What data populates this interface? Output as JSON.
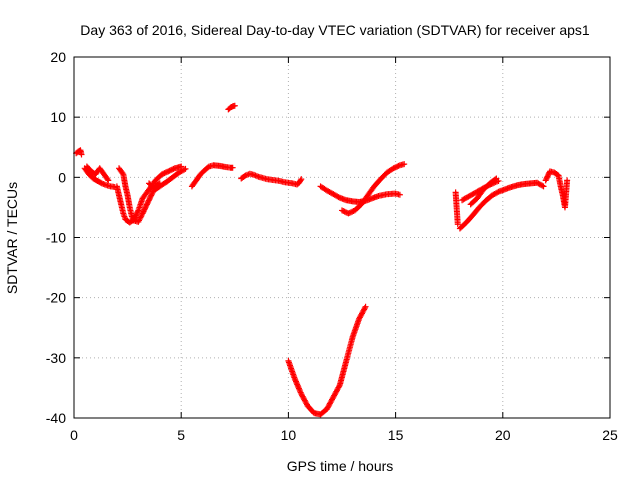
{
  "chart_data": {
    "type": "scatter",
    "title": "Day 363 of 2016, Sidereal Day-to-day VTEC variation (SDTVAR) for receiver aps1",
    "xlabel": "GPS time / hours",
    "ylabel": "SDTVAR / TECUs",
    "xlim": [
      0,
      25
    ],
    "ylim": [
      -40,
      20
    ],
    "xticks": [
      0,
      5,
      10,
      15,
      20,
      25
    ],
    "yticks": [
      -40,
      -30,
      -20,
      -10,
      0,
      10,
      20
    ],
    "grid": true,
    "marker": "+",
    "series": [
      {
        "name": "sdtvar",
        "color": "#ff0000",
        "segments": [
          [
            [
              0.1,
              4.0
            ],
            [
              0.2,
              4.3
            ],
            [
              0.3,
              4.5
            ],
            [
              0.35,
              3.8
            ]
          ],
          [
            [
              0.5,
              1.5
            ],
            [
              0.7,
              0.5
            ],
            [
              0.9,
              -0.2
            ],
            [
              1.1,
              -0.6
            ],
            [
              1.3,
              -1.0
            ],
            [
              1.5,
              -1.3
            ],
            [
              1.7,
              -1.5
            ],
            [
              1.9,
              -1.6
            ]
          ],
          [
            [
              0.6,
              1.8
            ],
            [
              0.8,
              1.0
            ],
            [
              1.0,
              0.5
            ],
            [
              1.2,
              1.5
            ],
            [
              1.4,
              0.5
            ],
            [
              1.6,
              -0.5
            ]
          ],
          [
            [
              2.1,
              1.5
            ],
            [
              2.3,
              0.5
            ],
            [
              2.4,
              -1.5
            ],
            [
              2.5,
              -3.0
            ],
            [
              2.6,
              -5.0
            ],
            [
              2.7,
              -6.5
            ],
            [
              2.8,
              -7.2
            ],
            [
              3.0,
              -7.4
            ],
            [
              3.2,
              -6.0
            ],
            [
              3.4,
              -4.5
            ],
            [
              3.6,
              -3.0
            ],
            [
              3.8,
              -1.5
            ],
            [
              4.0,
              -1.0
            ]
          ],
          [
            [
              2.0,
              -1.5
            ],
            [
              2.1,
              -3.0
            ],
            [
              2.2,
              -4.5
            ],
            [
              2.3,
              -6.0
            ],
            [
              2.4,
              -7.0
            ],
            [
              2.6,
              -7.5
            ],
            [
              2.8,
              -7.0
            ],
            [
              3.0,
              -5.5
            ],
            [
              3.2,
              -3.5
            ],
            [
              3.5,
              -2.0
            ],
            [
              3.8,
              -0.5
            ],
            [
              4.1,
              0.5
            ],
            [
              4.4,
              1.0
            ],
            [
              4.7,
              1.5
            ],
            [
              5.0,
              1.8
            ]
          ],
          [
            [
              3.5,
              -1.0
            ],
            [
              3.8,
              -2.0
            ],
            [
              4.0,
              -1.5
            ],
            [
              4.3,
              -0.8
            ],
            [
              4.6,
              0.0
            ],
            [
              4.9,
              0.8
            ],
            [
              5.2,
              1.4
            ]
          ],
          [
            [
              5.5,
              -1.5
            ],
            [
              5.7,
              -0.5
            ],
            [
              5.9,
              0.5
            ],
            [
              6.1,
              1.2
            ],
            [
              6.3,
              1.8
            ],
            [
              6.5,
              2.0
            ],
            [
              6.8,
              1.9
            ],
            [
              7.1,
              1.7
            ],
            [
              7.3,
              1.6
            ],
            [
              7.4,
              1.6
            ]
          ],
          [
            [
              7.2,
              11.3
            ],
            [
              7.3,
              11.6
            ],
            [
              7.4,
              11.8
            ],
            [
              7.5,
              11.9
            ]
          ],
          [
            [
              7.8,
              -0.2
            ],
            [
              8.0,
              0.3
            ],
            [
              8.2,
              0.6
            ],
            [
              8.4,
              0.4
            ],
            [
              8.6,
              0.1
            ],
            [
              8.8,
              -0.1
            ],
            [
              9.0,
              -0.3
            ],
            [
              9.2,
              -0.4
            ],
            [
              9.4,
              -0.5
            ],
            [
              9.6,
              -0.6
            ],
            [
              9.8,
              -0.8
            ],
            [
              10.0,
              -0.9
            ],
            [
              10.2,
              -1.0
            ],
            [
              10.4,
              -1.2
            ],
            [
              10.5,
              -0.9
            ],
            [
              10.6,
              -0.3
            ]
          ],
          [
            [
              10.0,
              -30.5
            ],
            [
              10.3,
              -33.5
            ],
            [
              10.6,
              -36.0
            ],
            [
              10.9,
              -38.0
            ],
            [
              11.2,
              -39.2
            ],
            [
              11.5,
              -39.4
            ],
            [
              11.8,
              -38.5
            ],
            [
              12.1,
              -36.5
            ],
            [
              12.4,
              -34.5
            ],
            [
              12.7,
              -30.5
            ],
            [
              13.0,
              -26.5
            ],
            [
              13.3,
              -23.5
            ],
            [
              13.6,
              -21.5
            ]
          ],
          [
            [
              11.5,
              -1.5
            ],
            [
              11.8,
              -2.2
            ],
            [
              12.1,
              -2.8
            ],
            [
              12.4,
              -3.4
            ],
            [
              12.7,
              -3.8
            ],
            [
              13.0,
              -4.0
            ],
            [
              13.3,
              -4.1
            ],
            [
              13.6,
              -3.9
            ],
            [
              13.9,
              -3.5
            ],
            [
              14.2,
              -3.1
            ],
            [
              14.6,
              -2.8
            ],
            [
              15.0,
              -2.7
            ],
            [
              15.2,
              -2.9
            ]
          ],
          [
            [
              12.5,
              -5.5
            ],
            [
              12.8,
              -6.0
            ],
            [
              13.1,
              -5.5
            ],
            [
              13.4,
              -4.5
            ],
            [
              13.7,
              -3.0
            ],
            [
              14.0,
              -1.5
            ],
            [
              14.3,
              -0.3
            ],
            [
              14.6,
              0.8
            ],
            [
              14.9,
              1.5
            ],
            [
              15.2,
              2.0
            ],
            [
              15.4,
              2.2
            ]
          ],
          [
            [
              17.8,
              -2.5
            ],
            [
              17.9,
              -7.8
            ]
          ],
          [
            [
              18.1,
              -3.8
            ],
            [
              18.4,
              -3.2
            ],
            [
              18.7,
              -2.6
            ],
            [
              19.0,
              -2.0
            ],
            [
              19.3,
              -1.4
            ],
            [
              19.6,
              -0.9
            ],
            [
              19.8,
              -0.6
            ]
          ],
          [
            [
              18.0,
              -8.5
            ],
            [
              18.3,
              -7.5
            ],
            [
              18.6,
              -6.3
            ],
            [
              18.9,
              -5.0
            ],
            [
              19.2,
              -3.9
            ],
            [
              19.5,
              -3.0
            ],
            [
              19.8,
              -2.4
            ],
            [
              20.1,
              -2.0
            ],
            [
              20.4,
              -1.6
            ],
            [
              20.7,
              -1.3
            ],
            [
              21.0,
              -1.1
            ],
            [
              21.3,
              -1.0
            ],
            [
              21.6,
              -0.9
            ],
            [
              21.9,
              -1.5
            ]
          ],
          [
            [
              18.5,
              -4.5
            ],
            [
              18.8,
              -3.5
            ],
            [
              19.1,
              -2.0
            ],
            [
              19.4,
              -1.0
            ],
            [
              19.7,
              -0.2
            ]
          ],
          [
            [
              22.0,
              -0.5
            ],
            [
              22.2,
              1.0
            ],
            [
              22.4,
              0.8
            ],
            [
              22.6,
              0.3
            ],
            [
              22.7,
              -1.5
            ],
            [
              22.8,
              -3.0
            ],
            [
              22.9,
              -5.0
            ],
            [
              23.0,
              -0.5
            ]
          ]
        ]
      }
    ]
  }
}
